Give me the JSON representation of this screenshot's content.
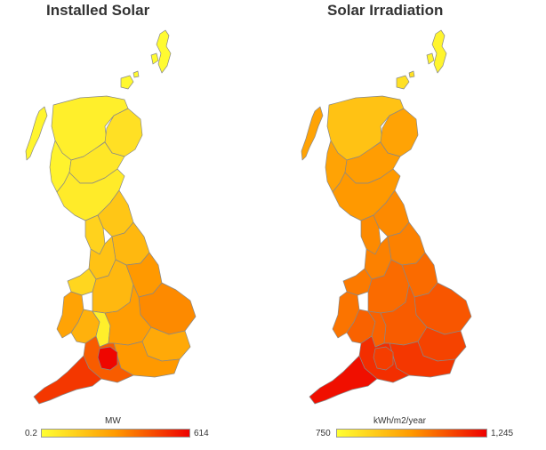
{
  "left_map": {
    "title": "Installed Solar",
    "legend": {
      "unit": "MW",
      "min": "0.2",
      "max": "614",
      "color_low": "#ffff33",
      "color_mid": "#ff9900",
      "color_high": "#ee0000"
    },
    "regions": [
      {
        "name": "shetland-islands",
        "level": 0.02
      },
      {
        "name": "orkney-islands",
        "level": 0.03
      },
      {
        "name": "outer-hebrides",
        "level": 0.05
      },
      {
        "name": "highland",
        "level": 0.08
      },
      {
        "name": "aberdeenshire",
        "level": 0.15
      },
      {
        "name": "argyll",
        "level": 0.06
      },
      {
        "name": "central-scotland",
        "level": 0.12
      },
      {
        "name": "southern-scotland",
        "level": 0.1
      },
      {
        "name": "north-west-england",
        "level": 0.22
      },
      {
        "name": "north-east-england",
        "level": 0.28
      },
      {
        "name": "yorkshire",
        "level": 0.35
      },
      {
        "name": "lancashire-cheshire",
        "level": 0.3
      },
      {
        "name": "north-wales",
        "level": 0.2
      },
      {
        "name": "west-wales",
        "level": 0.45
      },
      {
        "name": "south-wales",
        "level": 0.38
      },
      {
        "name": "midlands",
        "level": 0.35
      },
      {
        "name": "lincolnshire",
        "level": 0.5
      },
      {
        "name": "east-anglia",
        "level": 0.55
      },
      {
        "name": "herefordshire",
        "level": 0.08
      },
      {
        "name": "south-midlands",
        "level": 0.48
      },
      {
        "name": "kent-london",
        "level": 0.42
      },
      {
        "name": "hampshire-sussex",
        "level": 0.5
      },
      {
        "name": "somerset-dorset",
        "level": 0.7
      },
      {
        "name": "wiltshire",
        "level": 0.98
      },
      {
        "name": "devon-cornwall",
        "level": 0.82
      }
    ]
  },
  "right_map": {
    "title": "Solar Irradiation",
    "legend": {
      "unit": "kWh/m2/year",
      "min": "750",
      "max": "1,245",
      "color_low": "#ffff33",
      "color_mid": "#ff9900",
      "color_high": "#ee0000"
    },
    "regions": [
      {
        "name": "shetland-islands",
        "level": 0.05
      },
      {
        "name": "orkney-islands",
        "level": 0.15
      },
      {
        "name": "outer-hebrides",
        "level": 0.45
      },
      {
        "name": "highland",
        "level": 0.3
      },
      {
        "name": "aberdeenshire",
        "level": 0.45
      },
      {
        "name": "argyll",
        "level": 0.45
      },
      {
        "name": "central-scotland",
        "level": 0.48
      },
      {
        "name": "southern-scotland",
        "level": 0.5
      },
      {
        "name": "north-west-england",
        "level": 0.55
      },
      {
        "name": "north-east-england",
        "level": 0.55
      },
      {
        "name": "yorkshire",
        "level": 0.58
      },
      {
        "name": "lancashire-cheshire",
        "level": 0.58
      },
      {
        "name": "north-wales",
        "level": 0.6
      },
      {
        "name": "west-wales",
        "level": 0.62
      },
      {
        "name": "south-wales",
        "level": 0.68
      },
      {
        "name": "midlands",
        "level": 0.65
      },
      {
        "name": "lincolnshire",
        "level": 0.65
      },
      {
        "name": "east-anglia",
        "level": 0.72
      },
      {
        "name": "herefordshire",
        "level": 0.68
      },
      {
        "name": "south-midlands",
        "level": 0.7
      },
      {
        "name": "kent-london",
        "level": 0.78
      },
      {
        "name": "hampshire-sussex",
        "level": 0.82
      },
      {
        "name": "somerset-dorset",
        "level": 0.85
      },
      {
        "name": "wiltshire",
        "level": 0.8
      },
      {
        "name": "devon-cornwall",
        "level": 0.95
      }
    ]
  }
}
